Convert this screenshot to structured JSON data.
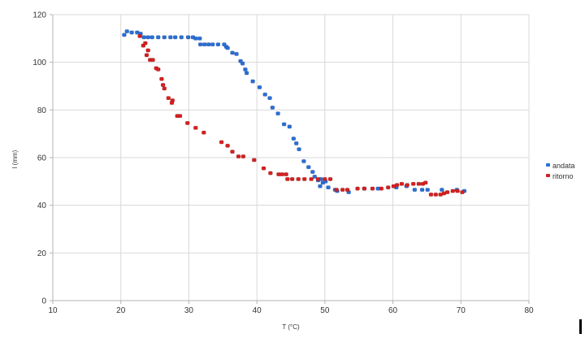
{
  "chart_data": {
    "type": "scatter",
    "title": "",
    "xlabel": "T (°C)",
    "ylabel": "l (mm)",
    "xlim": [
      10,
      80
    ],
    "ylim": [
      0,
      120
    ],
    "xticks": [
      10,
      20,
      30,
      40,
      50,
      60,
      70,
      80
    ],
    "yticks": [
      0,
      20,
      40,
      60,
      80,
      100,
      120
    ],
    "grid": true,
    "legend_position": "right",
    "series": [
      {
        "name": "andata",
        "color": "#2a6fd6",
        "points": [
          [
            20.5,
            111.5
          ],
          [
            20.9,
            113
          ],
          [
            21.6,
            112.5
          ],
          [
            22.4,
            112.5
          ],
          [
            22.9,
            112
          ],
          [
            23.4,
            110.5
          ],
          [
            24.0,
            110.5
          ],
          [
            24.6,
            110.5
          ],
          [
            25.5,
            110.5
          ],
          [
            26.4,
            110.5
          ],
          [
            27.3,
            110.5
          ],
          [
            28.0,
            110.5
          ],
          [
            28.9,
            110.5
          ],
          [
            29.9,
            110.5
          ],
          [
            30.6,
            110.5
          ],
          [
            31.0,
            110
          ],
          [
            31.6,
            110
          ],
          [
            31.7,
            107.5
          ],
          [
            32.3,
            107.5
          ],
          [
            32.9,
            107.5
          ],
          [
            33.5,
            107.5
          ],
          [
            34.3,
            107.5
          ],
          [
            35.2,
            107.5
          ],
          [
            35.5,
            106.5
          ],
          [
            35.7,
            106
          ],
          [
            36.4,
            104
          ],
          [
            37.0,
            103.5
          ],
          [
            37.6,
            100.5
          ],
          [
            37.9,
            99.5
          ],
          [
            38.3,
            97
          ],
          [
            38.5,
            95.5
          ],
          [
            39.4,
            92
          ],
          [
            40.4,
            89.5
          ],
          [
            41.2,
            86.5
          ],
          [
            41.9,
            85
          ],
          [
            42.3,
            81
          ],
          [
            43.1,
            78.5
          ],
          [
            44.0,
            74
          ],
          [
            44.8,
            73
          ],
          [
            45.4,
            68
          ],
          [
            45.8,
            66
          ],
          [
            46.2,
            63.5
          ],
          [
            46.9,
            58.5
          ],
          [
            47.6,
            56
          ],
          [
            48.2,
            54
          ],
          [
            48.5,
            52
          ],
          [
            49.0,
            50.5
          ],
          [
            49.4,
            51
          ],
          [
            49.7,
            49.5
          ],
          [
            50.1,
            50
          ],
          [
            49.3,
            48
          ],
          [
            50.5,
            47.5
          ],
          [
            51.5,
            46.5
          ],
          [
            51.8,
            46
          ],
          [
            53.5,
            45.5
          ],
          [
            55.8,
            47
          ],
          [
            57.8,
            47
          ],
          [
            60.5,
            47.5
          ],
          [
            62.0,
            48
          ],
          [
            63.2,
            46.5
          ],
          [
            64.3,
            46.5
          ],
          [
            65.1,
            46.5
          ],
          [
            67.2,
            46.5
          ],
          [
            69.4,
            46.5
          ],
          [
            70.5,
            46
          ]
        ]
      },
      {
        "name": "ritorno",
        "color": "#d42020",
        "points": [
          [
            22.8,
            111
          ],
          [
            23.3,
            107
          ],
          [
            23.6,
            108
          ],
          [
            24.0,
            105
          ],
          [
            23.8,
            103
          ],
          [
            24.3,
            101
          ],
          [
            24.7,
            101
          ],
          [
            25.2,
            97.5
          ],
          [
            25.5,
            97
          ],
          [
            26.0,
            93
          ],
          [
            26.2,
            90.5
          ],
          [
            26.4,
            89
          ],
          [
            27.0,
            85
          ],
          [
            27.6,
            84
          ],
          [
            27.5,
            83
          ],
          [
            28.3,
            77.5
          ],
          [
            28.7,
            77.5
          ],
          [
            29.8,
            74.5
          ],
          [
            31.0,
            72.5
          ],
          [
            32.2,
            70.5
          ],
          [
            34.8,
            66.5
          ],
          [
            35.7,
            65
          ],
          [
            36.4,
            62.5
          ],
          [
            37.3,
            60.5
          ],
          [
            38.0,
            60.5
          ],
          [
            39.6,
            59
          ],
          [
            41.0,
            55.5
          ],
          [
            42.0,
            53.5
          ],
          [
            43.2,
            53
          ],
          [
            43.7,
            53
          ],
          [
            44.3,
            53
          ],
          [
            44.5,
            51
          ],
          [
            45.2,
            51
          ],
          [
            46.1,
            51
          ],
          [
            47.0,
            51
          ],
          [
            48.0,
            51
          ],
          [
            49.0,
            51
          ],
          [
            50.0,
            51
          ],
          [
            50.8,
            51
          ],
          [
            51.7,
            46.5
          ],
          [
            52.6,
            46.5
          ],
          [
            53.3,
            46.5
          ],
          [
            54.8,
            47
          ],
          [
            55.8,
            47
          ],
          [
            57.0,
            47
          ],
          [
            58.3,
            47
          ],
          [
            59.3,
            47.5
          ],
          [
            60.1,
            48
          ],
          [
            60.6,
            48.5
          ],
          [
            61.3,
            49
          ],
          [
            62.1,
            48.5
          ],
          [
            63.0,
            49
          ],
          [
            63.8,
            49
          ],
          [
            64.4,
            49
          ],
          [
            64.8,
            49.5
          ],
          [
            65.6,
            44.5
          ],
          [
            66.3,
            44.5
          ],
          [
            67.0,
            44.5
          ],
          [
            67.5,
            45
          ],
          [
            68.0,
            45.5
          ],
          [
            68.8,
            46
          ],
          [
            69.5,
            46
          ],
          [
            70.2,
            45.5
          ]
        ]
      }
    ]
  },
  "legend": {
    "items": [
      {
        "label": "andata",
        "color": "#2a6fd6"
      },
      {
        "label": "ritorno",
        "color": "#d42020"
      }
    ]
  },
  "axes": {
    "x_title": "T (°C)",
    "y_title": "l (mm)"
  }
}
